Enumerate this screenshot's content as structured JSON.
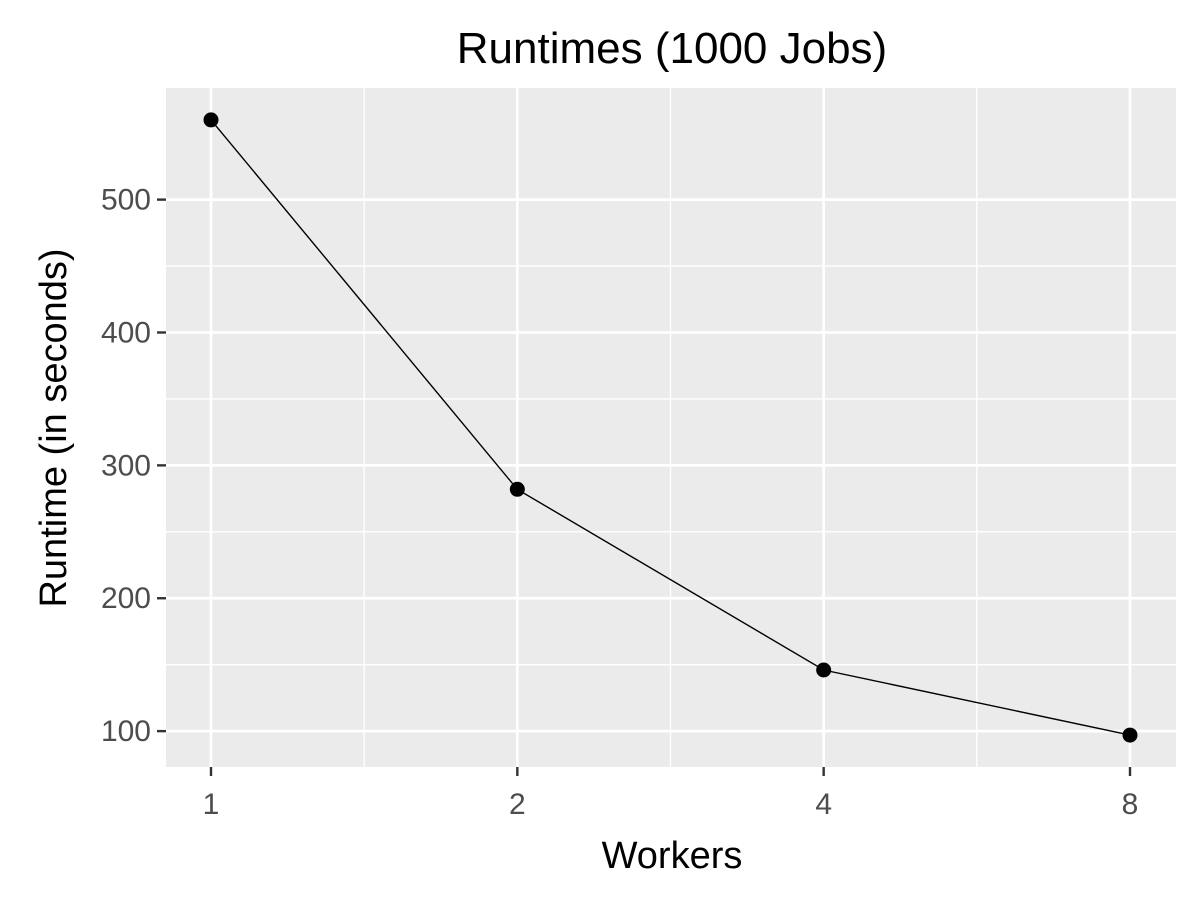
{
  "chart_data": {
    "type": "line",
    "title": "Runtimes (1000 Jobs)",
    "xlabel": "Workers",
    "ylabel": "Runtime (in seconds)",
    "x_scale": "log2",
    "x": [
      1,
      2,
      4,
      8
    ],
    "xticks": [
      "1",
      "2",
      "4",
      "8"
    ],
    "yticks": [
      "100",
      "200",
      "300",
      "400",
      "500"
    ],
    "series": [
      {
        "x": [
          1,
          2,
          4,
          8
        ],
        "values": [
          560,
          282,
          146,
          97
        ],
        "color": "#000000",
        "markers": true
      }
    ],
    "xlim": [
      1,
      8
    ],
    "ylim": [
      73,
      584
    ],
    "grid": true,
    "panel_background": "#ebebeb",
    "grid_color": "#ffffff"
  }
}
